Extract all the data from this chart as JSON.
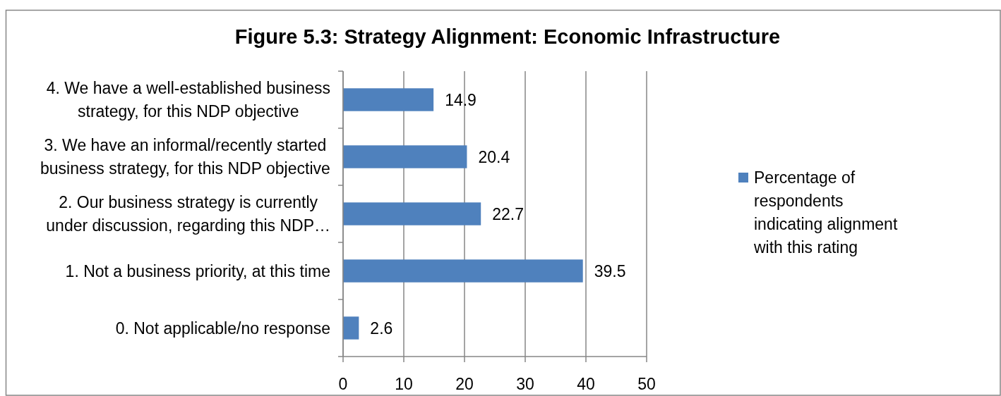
{
  "chart_data": {
    "type": "bar",
    "orientation": "horizontal",
    "title": "Figure 5.3: Strategy Alignment: Economic Infrastructure",
    "categories": [
      "4. We have a well-established business strategy, for this NDP objective",
      "3. We have an informal/recently started business strategy, for this NDP objective",
      "2. Our business strategy is currently under discussion, regarding this NDP…",
      "1. Not a business priority, at this time",
      "0. Not applicable/no response"
    ],
    "series": [
      {
        "name": "Percentage of respondents indicating alignment with this rating",
        "color": "#4f81bd",
        "values": [
          14.9,
          20.4,
          22.7,
          39.5,
          2.6
        ]
      }
    ],
    "xlim": [
      0,
      50
    ],
    "xticks": [
      0,
      10,
      20,
      30,
      40,
      50
    ],
    "grid": "x",
    "legend": "right",
    "data_labels": true
  }
}
